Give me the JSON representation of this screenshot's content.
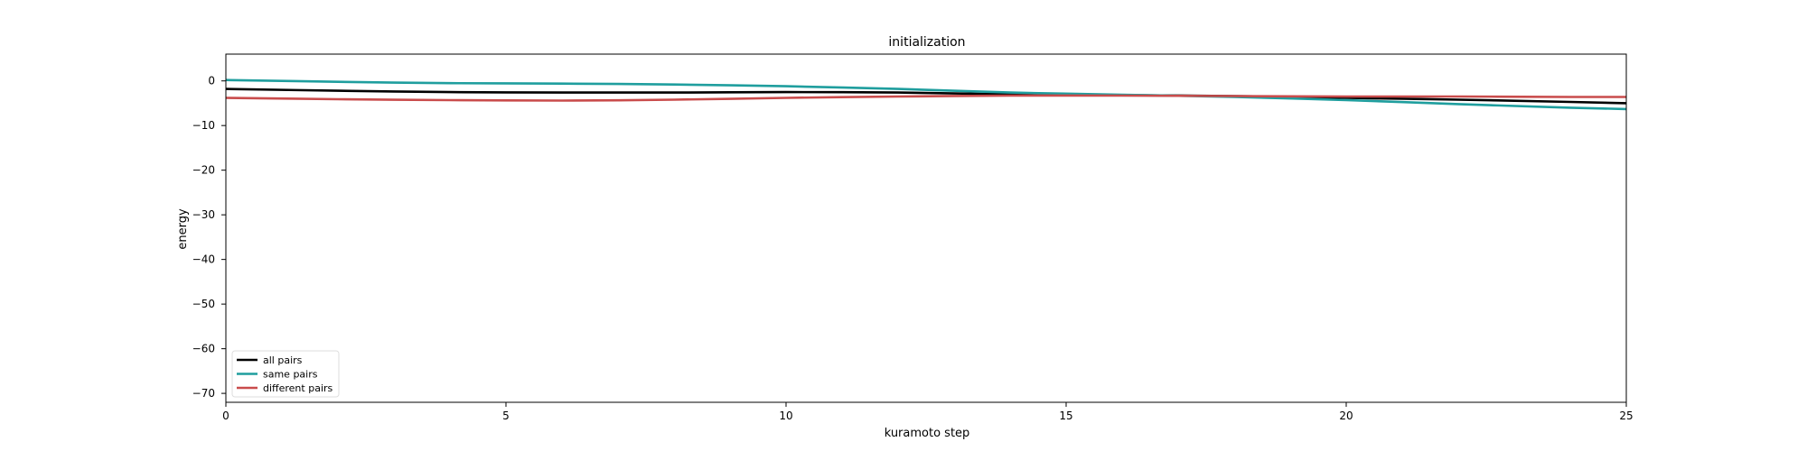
{
  "chart_data": {
    "type": "line",
    "title": "initialization",
    "xlabel": "kuramoto step",
    "ylabel": "energy",
    "xlim": [
      0,
      25
    ],
    "ylim": [
      -72,
      6
    ],
    "xticks": [
      0,
      5,
      10,
      15,
      20,
      25
    ],
    "yticks": [
      0,
      -10,
      -20,
      -30,
      -40,
      -50,
      -60,
      -70
    ],
    "grid": false,
    "legend_position": "lower-left",
    "series": [
      {
        "name": "all pairs",
        "color": "#000000",
        "x": [
          0,
          2,
          4,
          6,
          8,
          10,
          12,
          14,
          16,
          18,
          20,
          22,
          24,
          25
        ],
        "y": [
          -1.8,
          -2.2,
          -2.5,
          -2.6,
          -2.6,
          -2.5,
          -2.6,
          -3.0,
          -3.2,
          -3.4,
          -3.8,
          -4.2,
          -4.7,
          -5.0
        ]
      },
      {
        "name": "same pairs",
        "color": "#1f9e9e",
        "x": [
          0,
          2,
          4,
          6,
          8,
          10,
          12,
          14,
          16,
          18,
          20,
          22,
          24,
          25
        ],
        "y": [
          0.2,
          -0.2,
          -0.5,
          -0.6,
          -0.8,
          -1.2,
          -1.8,
          -2.6,
          -3.1,
          -3.6,
          -4.3,
          -5.2,
          -6.0,
          -6.3
        ]
      },
      {
        "name": "different pairs",
        "color": "#c94c4c",
        "x": [
          0,
          2,
          4,
          6,
          8,
          10,
          12,
          14,
          16,
          18,
          20,
          22,
          24,
          25
        ],
        "y": [
          -3.8,
          -4.1,
          -4.3,
          -4.4,
          -4.2,
          -3.8,
          -3.5,
          -3.3,
          -3.3,
          -3.4,
          -3.5,
          -3.5,
          -3.6,
          -3.6
        ]
      }
    ]
  }
}
